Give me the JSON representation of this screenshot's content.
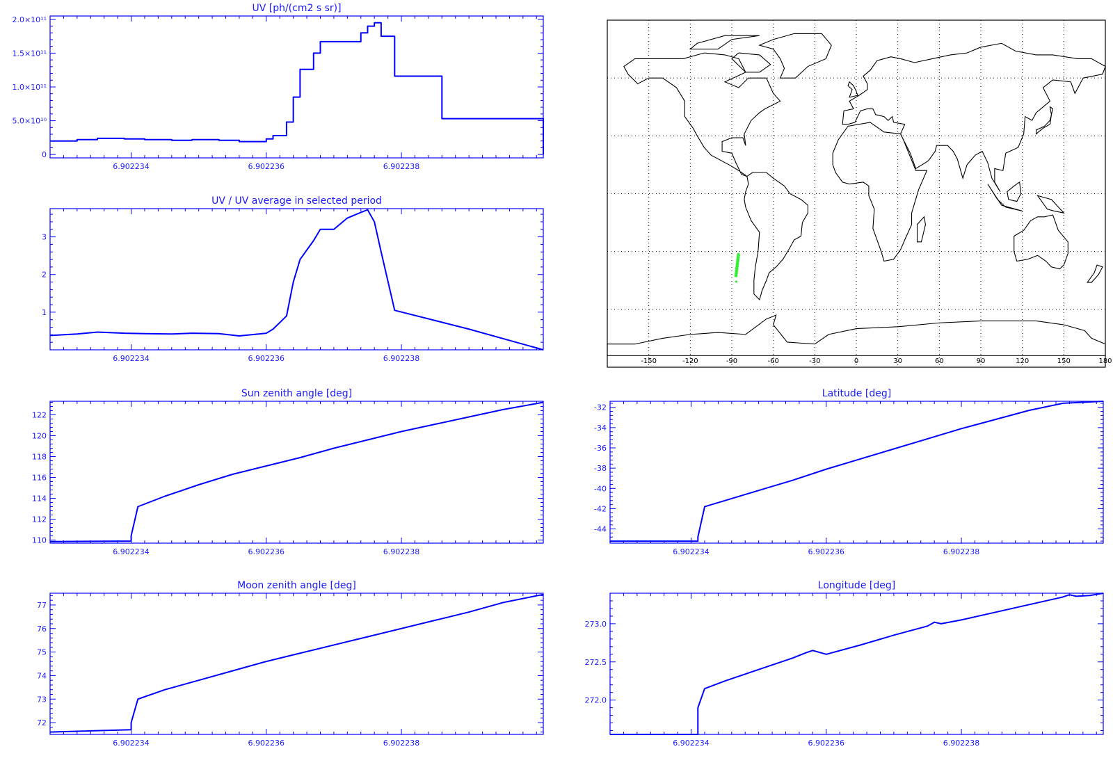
{
  "colors": {
    "line": "#0000ff",
    "axis": "#0000ff",
    "text": "#1a1aff",
    "map_track": "#33ee33",
    "coast": "#000000"
  },
  "charts": [
    {
      "title": "UV [ph/(cm2 s sr)]",
      "type": "line",
      "step": true,
      "xlim": [
        6.9022328,
        6.9022401
      ],
      "ylim": [
        -5000000000,
        205000000000
      ],
      "xticks": [
        6.902234,
        6.902236,
        6.902238
      ],
      "xtick_labels": [
        "6.902234",
        "6.902236",
        "6.902238"
      ],
      "yticks": [
        0,
        50000000000,
        100000000000,
        150000000000,
        200000000000
      ],
      "ytick_labels": [
        "0",
        "5.0×10¹⁰",
        "1.0×10¹¹",
        "1.5×10¹¹",
        "2.0×10¹¹"
      ]
    },
    {
      "title": "UV / UV average in selected period",
      "type": "line",
      "xlim": [
        6.9022328,
        6.9022401
      ],
      "ylim": [
        0,
        3.75
      ],
      "xticks": [
        6.902234,
        6.902236,
        6.902238
      ],
      "xtick_labels": [
        "6.902234",
        "6.902236",
        "6.902238"
      ],
      "yticks": [
        1,
        2,
        3
      ],
      "ytick_labels": [
        "1",
        "2",
        "3"
      ]
    },
    {
      "title": "Sun zenith angle [deg]",
      "type": "line",
      "xlim": [
        6.9022328,
        6.9022401
      ],
      "ylim": [
        109.7,
        123.3
      ],
      "xticks": [
        6.902234,
        6.902236,
        6.902238
      ],
      "xtick_labels": [
        "6.902234",
        "6.902236",
        "6.902238"
      ],
      "yticks": [
        110,
        112,
        114,
        116,
        118,
        120,
        122
      ],
      "ytick_labels": [
        "110",
        "112",
        "114",
        "116",
        "118",
        "120",
        "122"
      ]
    },
    {
      "title": "Moon zenith angle [deg]",
      "type": "line",
      "xlim": [
        6.9022328,
        6.9022401
      ],
      "ylim": [
        71.5,
        77.5
      ],
      "xticks": [
        6.902234,
        6.902236,
        6.902238
      ],
      "xtick_labels": [
        "6.902234",
        "6.902236",
        "6.902238"
      ],
      "yticks": [
        72,
        73,
        74,
        75,
        76,
        77
      ],
      "ytick_labels": [
        "72",
        "73",
        "74",
        "75",
        "76",
        "77"
      ]
    },
    {
      "title": "Latitude [deg]",
      "type": "line",
      "xlim": [
        6.9022328,
        6.9022401
      ],
      "ylim": [
        -45.4,
        -31.4
      ],
      "xticks": [
        6.902234,
        6.902236,
        6.902238
      ],
      "xtick_labels": [
        "6.902234",
        "6.902236",
        "6.902238"
      ],
      "yticks": [
        -44,
        -42,
        -40,
        -38,
        -36,
        -34,
        -32
      ],
      "ytick_labels": [
        "-44",
        "-42",
        "-40",
        "-38",
        "-36",
        "-34",
        "-32"
      ]
    },
    {
      "title": "Longitude [deg]",
      "type": "line",
      "xlim": [
        6.9022328,
        6.9022401
      ],
      "ylim": [
        271.55,
        273.4
      ],
      "xticks": [
        6.902234,
        6.902236,
        6.902238
      ],
      "xtick_labels": [
        "6.902234",
        "6.902236",
        "6.902238"
      ],
      "yticks": [
        272.0,
        272.5,
        273.0
      ],
      "ytick_labels": [
        "272.0",
        "272.5",
        "273.0"
      ]
    }
  ],
  "chart_data": [
    {
      "type": "line",
      "title": "UV [ph/(cm2 s sr)]",
      "x": [
        6.9022328,
        6.9022332,
        6.9022335,
        6.9022339,
        6.9022342,
        6.9022346,
        6.9022349,
        6.9022353,
        6.9022356,
        6.902236,
        6.9022361,
        6.9022363,
        6.9022364,
        6.9022365,
        6.9022367,
        6.9022368,
        6.902237,
        6.9022374,
        6.9022375,
        6.9022376,
        6.9022377,
        6.9022379,
        6.9022386,
        6.9022401
      ],
      "series": [
        {
          "values": [
            20000000000,
            22000000000,
            24000000000,
            23000000000,
            22000000000,
            21000000000,
            22000000000,
            21000000000,
            19000000000,
            23000000000,
            28000000000,
            48000000000,
            85000000000,
            126000000000,
            150000000000,
            167000000000,
            167000000000,
            180000000000,
            190000000000,
            195000000000,
            175000000000,
            116000000000,
            53000000000,
            0
          ]
        }
      ]
    },
    {
      "type": "line",
      "title": "UV / UV average in selected period",
      "x": [
        6.9022328,
        6.9022332,
        6.9022335,
        6.9022339,
        6.9022342,
        6.9022346,
        6.9022349,
        6.9022353,
        6.9022356,
        6.902236,
        6.9022361,
        6.9022363,
        6.9022364,
        6.9022365,
        6.9022367,
        6.9022368,
        6.902237,
        6.9022372,
        6.9022374,
        6.9022375,
        6.9022376,
        6.9022377,
        6.9022379,
        6.902239,
        6.9022401
      ],
      "series": [
        {
          "values": [
            0.38,
            0.42,
            0.47,
            0.44,
            0.43,
            0.42,
            0.44,
            0.43,
            0.37,
            0.44,
            0.55,
            0.9,
            1.8,
            2.4,
            2.9,
            3.2,
            3.2,
            3.5,
            3.65,
            3.72,
            3.4,
            2.6,
            1.05,
            0.55,
            0.0
          ]
        }
      ]
    },
    {
      "type": "line",
      "title": "Sun zenith angle [deg]",
      "x": [
        6.9022328,
        6.902234,
        6.902234,
        6.9022341,
        6.9022345,
        6.902235,
        6.9022355,
        6.902236,
        6.9022365,
        6.902237,
        6.9022375,
        6.902238,
        6.9022385,
        6.902239,
        6.9022395,
        6.9022401
      ],
      "series": [
        {
          "values": [
            109.85,
            109.9,
            110.4,
            113.2,
            114.2,
            115.3,
            116.3,
            117.1,
            117.9,
            118.8,
            119.6,
            120.4,
            121.1,
            121.8,
            122.5,
            123.2
          ]
        }
      ]
    },
    {
      "type": "line",
      "title": "Moon zenith angle [deg]",
      "x": [
        6.9022328,
        6.902234,
        6.902234,
        6.9022341,
        6.9022345,
        6.902235,
        6.9022355,
        6.902236,
        6.9022365,
        6.902237,
        6.9022375,
        6.902238,
        6.9022385,
        6.902239,
        6.9022395,
        6.9022401
      ],
      "series": [
        {
          "values": [
            71.6,
            71.7,
            72.0,
            73.0,
            73.4,
            73.8,
            74.2,
            74.6,
            74.95,
            75.3,
            75.65,
            76.0,
            76.35,
            76.7,
            77.1,
            77.45
          ]
        }
      ]
    },
    {
      "type": "line",
      "title": "Latitude [deg]",
      "x": [
        6.9022328,
        6.9022341,
        6.9022341,
        6.9022342,
        6.9022345,
        6.902235,
        6.9022355,
        6.902236,
        6.9022365,
        6.902237,
        6.9022375,
        6.902238,
        6.9022385,
        6.902239,
        6.9022395,
        6.9022401
      ],
      "series": [
        {
          "values": [
            -45.2,
            -45.2,
            -44.8,
            -41.8,
            -41.2,
            -40.2,
            -39.2,
            -38.1,
            -37.1,
            -36.1,
            -35.1,
            -34.1,
            -33.2,
            -32.3,
            -31.6,
            -31.4
          ]
        }
      ]
    },
    {
      "type": "line",
      "title": "Longitude [deg]",
      "x": [
        6.9022328,
        6.9022341,
        6.9022341,
        6.9022342,
        6.9022345,
        6.902235,
        6.9022355,
        6.9022357,
        6.9022358,
        6.902236,
        6.9022365,
        6.902237,
        6.9022375,
        6.9022376,
        6.9022377,
        6.902238,
        6.9022385,
        6.902239,
        6.9022395,
        6.9022396,
        6.9022397,
        6.9022399,
        6.9022401
      ],
      "series": [
        {
          "values": [
            271.55,
            271.55,
            271.9,
            272.15,
            272.25,
            272.4,
            272.55,
            272.62,
            272.65,
            272.6,
            272.72,
            272.85,
            272.97,
            273.02,
            273.0,
            273.05,
            273.15,
            273.25,
            273.35,
            273.38,
            273.36,
            273.37,
            273.4
          ]
        }
      ]
    }
  ],
  "map": {
    "lon_tick_labels": [
      "-150",
      "-120",
      "-90",
      "-60",
      "-30",
      "0",
      "30",
      "60",
      "90",
      "120",
      "150",
      "180"
    ],
    "lon_ticks": [
      -150,
      -120,
      -90,
      -60,
      -30,
      0,
      30,
      60,
      90,
      120,
      150,
      180
    ],
    "lat_grid": [
      60,
      30,
      0,
      -30,
      -60
    ],
    "lon_range": [
      -180,
      180
    ],
    "lat_range": [
      -90,
      90
    ],
    "track": {
      "lon": [
        -87.0,
        -86.8,
        -86.6,
        -86.4,
        -86.2,
        -86.0,
        -85.8,
        -85.6,
        -85.4,
        -85.2
      ],
      "lat": [
        -42.5,
        -41.3,
        -40.1,
        -38.9,
        -37.7,
        -36.5,
        -35.3,
        -34.1,
        -33.0,
        -31.9
      ]
    },
    "outliers": [
      {
        "lon": -86.7,
        "lat": -45.6
      },
      {
        "lon": -85.2,
        "lat": -31.3
      }
    ]
  }
}
